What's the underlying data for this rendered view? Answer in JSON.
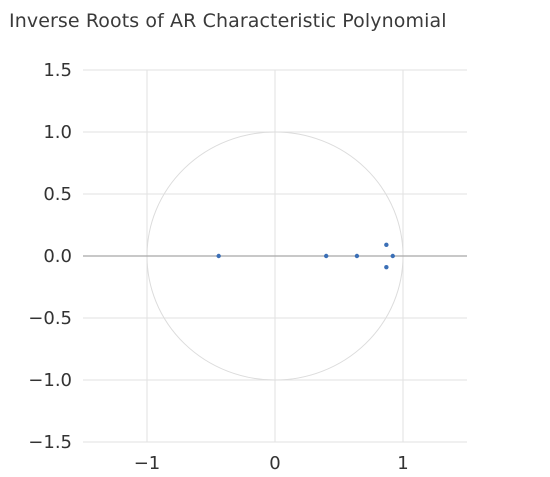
{
  "chart_data": {
    "type": "scatter",
    "title": "Inverse Roots of AR Characteristic Polynomial",
    "xlabel": "",
    "ylabel": "",
    "xlim": [
      -1.5,
      1.5
    ],
    "ylim": [
      -1.5,
      1.5
    ],
    "x_ticks": [
      "−1",
      "0",
      "1"
    ],
    "x_tick_values": [
      -1,
      0,
      1
    ],
    "y_ticks": [
      "1.5",
      "1.0",
      "0.5",
      "0.0",
      "−0.5",
      "−1.0",
      "−1.5"
    ],
    "y_tick_values": [
      1.5,
      1.0,
      0.5,
      0.0,
      -0.5,
      -1.0,
      -1.5
    ],
    "grid": true,
    "unit_circle": true,
    "points": [
      {
        "x": -0.44,
        "y": 0.0
      },
      {
        "x": 0.4,
        "y": 0.0
      },
      {
        "x": 0.64,
        "y": 0.0
      },
      {
        "x": 0.87,
        "y": 0.09
      },
      {
        "x": 0.87,
        "y": -0.09
      },
      {
        "x": 0.92,
        "y": 0.0
      }
    ],
    "colors": {
      "point": "#3b6fb6",
      "grid": "#e2e2e2",
      "circle": "#dcdcdc",
      "zero_line": "#a8a8a8"
    }
  }
}
